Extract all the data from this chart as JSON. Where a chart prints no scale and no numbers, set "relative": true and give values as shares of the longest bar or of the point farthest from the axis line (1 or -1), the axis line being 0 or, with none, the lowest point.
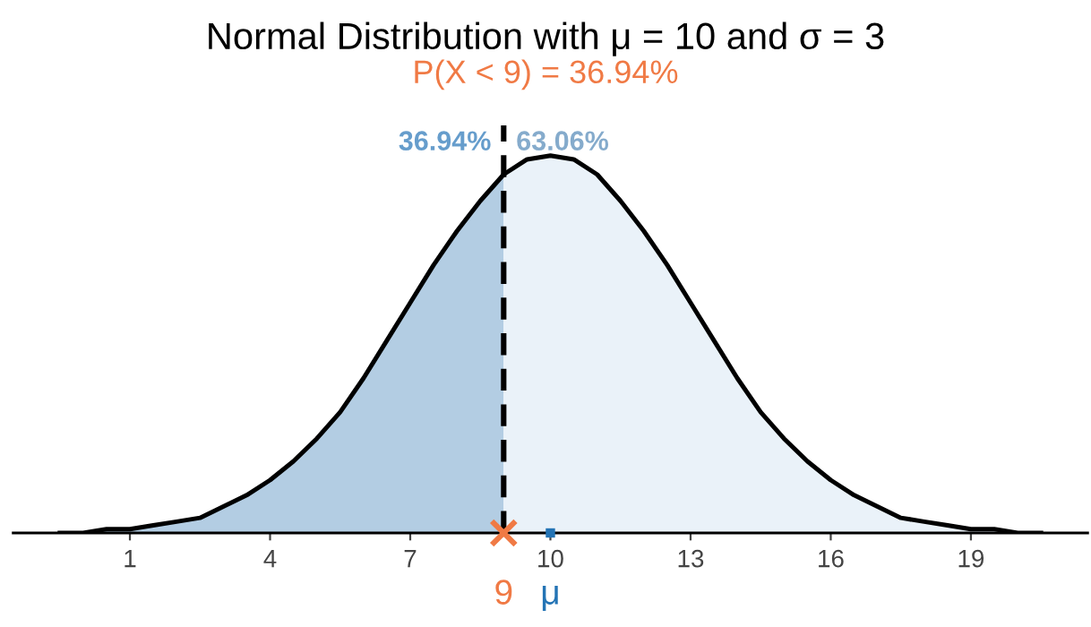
{
  "chart_data": {
    "type": "area",
    "title": "Normal Distribution with μ = 10 and σ = 3",
    "subtitle": "P(X < 9) = 36.94%",
    "relative": true,
    "xlim": [
      -1.5,
      21.5
    ],
    "xticks": [
      1,
      4,
      7,
      10,
      13,
      16,
      19
    ],
    "grid": false,
    "legend": false,
    "tick_labels": "x",
    "series": [
      {
        "name": "36.94%",
        "color": "#b3cde3",
        "x": [
          -0.5,
          0,
          0.5,
          1,
          1.5,
          2,
          2.5,
          3,
          3.5,
          4,
          4.5,
          5,
          5.5,
          6,
          6.5,
          7,
          7.5,
          8,
          8.5,
          9
        ],
        "values": [
          0.0,
          0.0,
          0.01,
          0.01,
          0.02,
          0.03,
          0.04,
          0.07,
          0.1,
          0.14,
          0.19,
          0.25,
          0.32,
          0.41,
          0.51,
          0.61,
          0.71,
          0.8,
          0.88,
          0.95
        ]
      },
      {
        "name": "63.06%",
        "color": "#eaf2f9",
        "x": [
          9,
          9.5,
          10,
          10.5,
          11,
          11.5,
          12,
          12.5,
          13,
          13.5,
          14,
          14.5,
          15,
          15.5,
          16,
          16.5,
          17,
          17.5,
          18,
          18.5,
          19,
          19.5,
          20,
          20.5
        ],
        "values": [
          0.95,
          0.99,
          1.0,
          0.99,
          0.95,
          0.88,
          0.8,
          0.71,
          0.61,
          0.51,
          0.41,
          0.32,
          0.25,
          0.19,
          0.14,
          0.1,
          0.07,
          0.04,
          0.03,
          0.02,
          0.01,
          0.01,
          0.0,
          0.0
        ]
      },
      {
        "type": "line",
        "color": "#000000",
        "x": [
          -0.5,
          0,
          0.5,
          1,
          1.5,
          2,
          2.5,
          3,
          3.5,
          4,
          4.5,
          5,
          5.5,
          6,
          6.5,
          7,
          7.5,
          8,
          8.5,
          9,
          9.5,
          10,
          10.5,
          11,
          11.5,
          12,
          12.5,
          13,
          13.5,
          14,
          14.5,
          15,
          15.5,
          16,
          16.5,
          17,
          17.5,
          18,
          18.5,
          19,
          19.5,
          20,
          20.5
        ],
        "values": [
          0.0,
          0.0,
          0.01,
          0.01,
          0.02,
          0.03,
          0.04,
          0.07,
          0.1,
          0.14,
          0.19,
          0.25,
          0.32,
          0.41,
          0.51,
          0.61,
          0.71,
          0.8,
          0.88,
          0.95,
          0.99,
          1.0,
          0.99,
          0.95,
          0.88,
          0.8,
          0.71,
          0.61,
          0.51,
          0.41,
          0.32,
          0.25,
          0.19,
          0.14,
          0.1,
          0.07,
          0.04,
          0.03,
          0.02,
          0.01,
          0.01,
          0.0,
          0.0
        ]
      },
      {
        "type": "scatter",
        "name": "9",
        "color": "#f07a45",
        "marker": "cross",
        "x": [
          9
        ],
        "values": [
          0
        ]
      },
      {
        "type": "scatter",
        "name": "μ",
        "color": "#2474b5",
        "marker": "square",
        "x": [
          10
        ],
        "values": [
          0
        ]
      }
    ],
    "ref_lines": [
      {
        "axis": "x",
        "value": 9,
        "color": "#000000",
        "line_style": "dashed"
      }
    ]
  }
}
